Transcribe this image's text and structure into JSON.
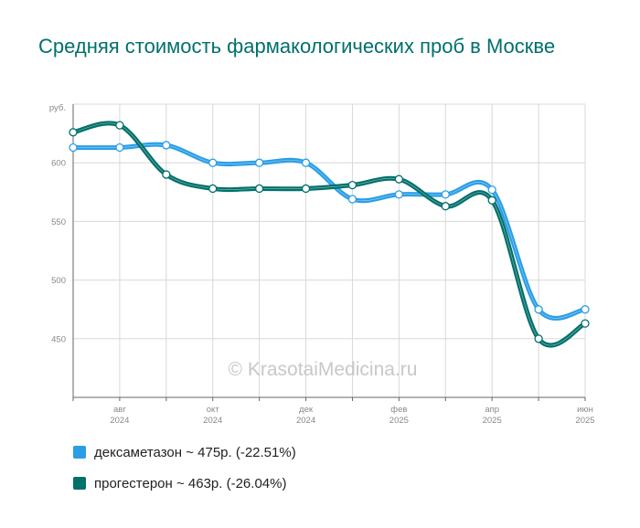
{
  "title": "Средняя стоимость фармакологических проб в Москве",
  "watermark": "© KrasotaiMedicina.ru",
  "colors": {
    "series_0": "#2a9ee6",
    "series_1": "#00706b",
    "grid": "#d8d8d8",
    "axis_text": "#888888"
  },
  "legend": [
    {
      "label": "дексаметазон ~ 475р. (-22.51%)",
      "color": "#2a9ee6"
    },
    {
      "label": "прогестерон ~ 463р. (-26.04%)",
      "color": "#00706b"
    }
  ],
  "chart_data": {
    "type": "line",
    "title": "Средняя стоимость фармакологических проб в Москве",
    "ylabel": "руб.",
    "ylim": [
      400,
      650
    ],
    "yticks": [
      450,
      500,
      550,
      600
    ],
    "x": [
      "2024-07",
      "2024-08",
      "2024-09",
      "2024-10",
      "2024-11",
      "2024-12",
      "2025-01",
      "2025-02",
      "2025-03",
      "2025-04",
      "2025-05",
      "2025-06"
    ],
    "xticks": [
      {
        "month": "авг",
        "year": "2024",
        "index": 1
      },
      {
        "month": "окт",
        "year": "2024",
        "index": 3
      },
      {
        "month": "дек",
        "year": "2024",
        "index": 5
      },
      {
        "month": "фев",
        "year": "2025",
        "index": 7
      },
      {
        "month": "апр",
        "year": "2025",
        "index": 9
      },
      {
        "month": "июн",
        "year": "2025",
        "index": 11
      }
    ],
    "series": [
      {
        "name": "дексаметазон",
        "color": "#2a9ee6",
        "values": [
          613,
          613,
          615,
          600,
          600,
          600,
          569,
          573,
          573,
          577,
          475,
          475
        ]
      },
      {
        "name": "прогестерон",
        "color": "#00706b",
        "values": [
          626,
          632,
          590,
          578,
          578,
          578,
          581,
          586,
          563,
          568,
          450,
          463
        ]
      }
    ],
    "grid": true,
    "legend_position": "bottom-left"
  }
}
